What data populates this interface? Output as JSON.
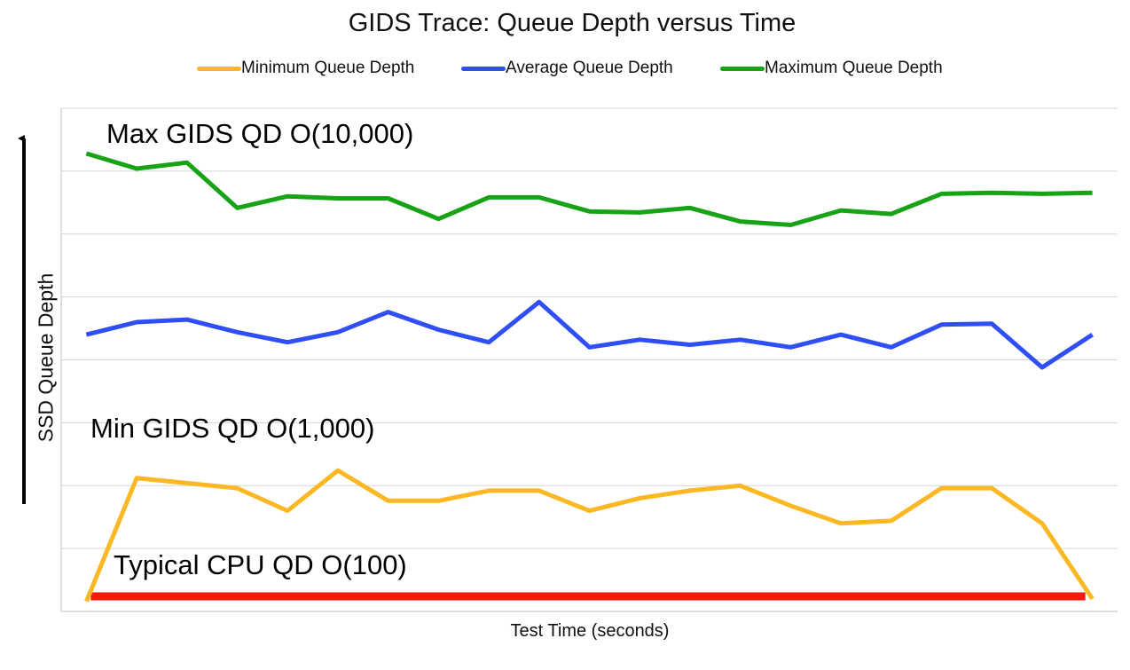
{
  "chart_data": {
    "type": "line",
    "title": "GIDS Trace: Queue Depth versus Time",
    "xlabel": "Test Time (seconds)",
    "ylabel": "SSD Queue Depth",
    "legend_position": "top",
    "grid": true,
    "x": [
      1,
      2,
      3,
      4,
      5,
      6,
      7,
      8,
      9,
      10,
      11,
      12,
      13,
      14,
      15,
      16,
      17,
      18,
      19,
      20,
      21
    ],
    "series": [
      {
        "name": "Minimum Queue Depth",
        "color": "#fbb824",
        "values": [
          0.2,
          2.65,
          2.55,
          2.45,
          2.0,
          2.8,
          2.2,
          2.2,
          2.4,
          2.4,
          2.0,
          2.25,
          2.4,
          2.5,
          2.1,
          1.75,
          1.8,
          2.45,
          2.45,
          1.75,
          0.25
        ]
      },
      {
        "name": "Average Queue Depth",
        "color": "#2f4ef5",
        "values": [
          5.5,
          5.75,
          5.8,
          5.55,
          5.35,
          5.55,
          5.95,
          5.6,
          5.35,
          6.15,
          5.25,
          5.4,
          5.3,
          5.4,
          5.25,
          5.5,
          5.25,
          5.7,
          5.72,
          4.85,
          5.5
        ]
      },
      {
        "name": "Maximum Queue Depth",
        "color": "#17a315",
        "values": [
          9.1,
          8.8,
          8.92,
          8.02,
          8.25,
          8.21,
          8.21,
          7.8,
          8.23,
          8.23,
          7.95,
          7.93,
          8.02,
          7.75,
          7.68,
          7.97,
          7.9,
          8.3,
          8.32,
          8.3,
          8.32
        ]
      }
    ],
    "reference_line": {
      "name": "Typical CPU QD",
      "color": "#f21a0a",
      "value": 0.3
    },
    "annotations": [
      {
        "id": "max",
        "text": "Max GIDS QD O(10,000)"
      },
      {
        "id": "min",
        "text": "Min GIDS QD O(1,000)"
      },
      {
        "id": "cpu",
        "text": "Typical CPU QD O(100)"
      }
    ],
    "ylim": [
      0,
      10
    ],
    "xlim": [
      0.5,
      21.5
    ]
  }
}
